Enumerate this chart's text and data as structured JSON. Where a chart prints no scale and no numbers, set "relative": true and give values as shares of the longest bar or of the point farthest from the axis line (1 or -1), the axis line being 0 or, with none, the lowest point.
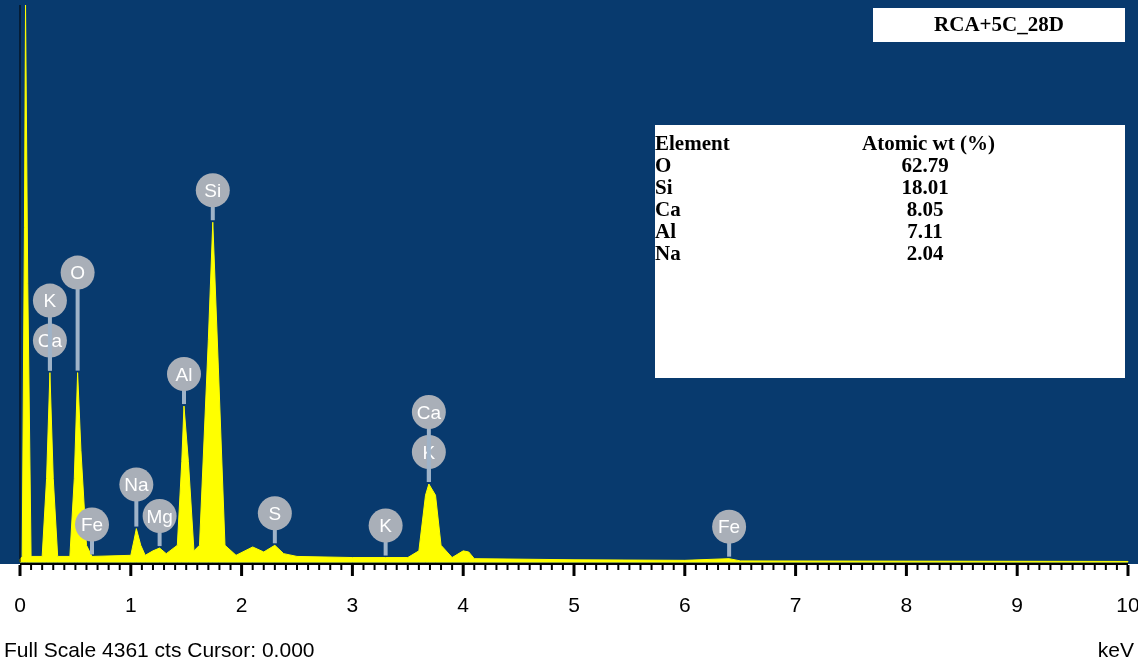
{
  "chart_data": {
    "type": "area",
    "title": "RCA+5C_28D",
    "xlabel": "keV",
    "relative": true,
    "color": "#ffff00",
    "xlim": [
      0,
      10
    ],
    "xticks": [
      0,
      {
        "value": 0.1,
        "label": null
      },
      {
        "value": 0.2,
        "label": null
      },
      {
        "value": 0.3,
        "label": null
      },
      {
        "value": 0.4,
        "label": null
      },
      {
        "value": 0.5,
        "label": null
      },
      {
        "value": 0.6,
        "label": null
      },
      {
        "value": 0.7,
        "label": null
      },
      {
        "value": 0.8,
        "label": null
      },
      {
        "value": 0.9,
        "label": null
      },
      1,
      {
        "value": 1.1,
        "label": null
      },
      {
        "value": 1.2,
        "label": null
      },
      {
        "value": 1.3,
        "label": null
      },
      {
        "value": 1.4,
        "label": null
      },
      {
        "value": 1.5,
        "label": null
      },
      {
        "value": 1.6,
        "label": null
      },
      {
        "value": 1.7,
        "label": null
      },
      {
        "value": 1.8,
        "label": null
      },
      {
        "value": 1.9,
        "label": null
      },
      2,
      {
        "value": 2.1,
        "label": null
      },
      {
        "value": 2.2,
        "label": null
      },
      {
        "value": 2.3,
        "label": null
      },
      {
        "value": 2.4,
        "label": null
      },
      {
        "value": 2.5,
        "label": null
      },
      {
        "value": 2.6,
        "label": null
      },
      {
        "value": 2.7,
        "label": null
      },
      {
        "value": 2.8,
        "label": null
      },
      {
        "value": 2.9,
        "label": null
      },
      3,
      {
        "value": 3.1,
        "label": null
      },
      {
        "value": 3.2,
        "label": null
      },
      {
        "value": 3.3,
        "label": null
      },
      {
        "value": 3.4,
        "label": null
      },
      {
        "value": 3.5,
        "label": null
      },
      {
        "value": 3.6,
        "label": null
      },
      {
        "value": 3.7,
        "label": null
      },
      {
        "value": 3.8,
        "label": null
      },
      {
        "value": 3.9,
        "label": null
      },
      4,
      {
        "value": 4.1,
        "label": null
      },
      {
        "value": 4.2,
        "label": null
      },
      {
        "value": 4.3,
        "label": null
      },
      {
        "value": 4.4,
        "label": null
      },
      {
        "value": 4.5,
        "label": null
      },
      {
        "value": 4.6,
        "label": null
      },
      {
        "value": 4.7,
        "label": null
      },
      {
        "value": 4.8,
        "label": null
      },
      {
        "value": 4.9,
        "label": null
      },
      5,
      {
        "value": 5.1,
        "label": null
      },
      {
        "value": 5.2,
        "label": null
      },
      {
        "value": 5.3,
        "label": null
      },
      {
        "value": 5.4,
        "label": null
      },
      {
        "value": 5.5,
        "label": null
      },
      {
        "value": 5.6,
        "label": null
      },
      {
        "value": 5.7,
        "label": null
      },
      {
        "value": 5.8,
        "label": null
      },
      {
        "value": 5.9,
        "label": null
      },
      6,
      {
        "value": 6.1,
        "label": null
      },
      {
        "value": 6.2,
        "label": null
      },
      {
        "value": 6.3,
        "label": null
      },
      {
        "value": 6.4,
        "label": null
      },
      {
        "value": 6.5,
        "label": null
      },
      {
        "value": 6.6,
        "label": null
      },
      {
        "value": 6.7,
        "label": null
      },
      {
        "value": 6.8,
        "label": null
      },
      {
        "value": 6.9,
        "label": null
      },
      7,
      {
        "value": 7.1,
        "label": null
      },
      {
        "value": 7.2,
        "label": null
      },
      {
        "value": 7.3,
        "label": null
      },
      {
        "value": 7.4,
        "label": null
      },
      {
        "value": 7.5,
        "label": null
      },
      {
        "value": 7.6,
        "label": null
      },
      {
        "value": 7.7,
        "label": null
      },
      {
        "value": 7.8,
        "label": null
      },
      {
        "value": 7.9,
        "label": null
      },
      8,
      {
        "value": 8.1,
        "label": null
      },
      {
        "value": 8.2,
        "label": null
      },
      {
        "value": 8.3,
        "label": null
      },
      {
        "value": 8.4,
        "label": null
      },
      {
        "value": 8.5,
        "label": null
      },
      {
        "value": 8.6,
        "label": null
      },
      {
        "value": 8.7,
        "label": null
      },
      {
        "value": 8.8,
        "label": null
      },
      {
        "value": 8.9,
        "label": null
      },
      9,
      {
        "value": 9.1,
        "label": null
      },
      {
        "value": 9.2,
        "label": null
      },
      {
        "value": 9.3,
        "label": null
      },
      {
        "value": 9.4,
        "label": null
      },
      {
        "value": 9.5,
        "label": null
      },
      {
        "value": 9.6,
        "label": null
      },
      {
        "value": 9.7,
        "label": null
      },
      {
        "value": 9.8,
        "label": null
      },
      {
        "value": 9.9,
        "label": null
      },
      10
    ],
    "x": [
      0,
      0.02,
      0.04,
      0.05,
      0.07,
      0.1,
      0.2,
      0.24,
      0.27,
      0.3,
      0.34,
      0.45,
      0.49,
      0.52,
      0.55,
      0.6,
      0.65,
      1.0,
      1.03,
      1.05,
      1.09,
      1.13,
      1.2,
      1.26,
      1.32,
      1.42,
      1.46,
      1.48,
      1.52,
      1.57,
      1.62,
      1.7,
      1.74,
      1.79,
      1.85,
      1.95,
      2.1,
      2.2,
      2.3,
      2.38,
      2.5,
      3.0,
      3.3,
      3.5,
      3.6,
      3.66,
      3.69,
      3.75,
      3.8,
      3.9,
      4.0,
      4.05,
      4.1,
      5,
      6,
      6.4,
      6.5,
      10
    ],
    "values": [
      0.005,
      0.01,
      0.6,
      1.0,
      0.5,
      0.01,
      0.01,
      0.15,
      0.34,
      0.15,
      0.01,
      0.01,
      0.15,
      0.34,
      0.2,
      0.03,
      0.01,
      0.012,
      0.04,
      0.06,
      0.03,
      0.012,
      0.02,
      0.025,
      0.015,
      0.03,
      0.18,
      0.28,
      0.18,
      0.02,
      0.03,
      0.4,
      0.61,
      0.35,
      0.03,
      0.012,
      0.027,
      0.018,
      0.03,
      0.015,
      0.01,
      0.008,
      0.008,
      0.008,
      0.02,
      0.12,
      0.14,
      0.12,
      0.03,
      0.008,
      0.02,
      0.018,
      0.006,
      0.004,
      0.003,
      0.006,
      0.002,
      0.001
    ],
    "annotations": [
      {
        "text": "Ca",
        "x": 0.27,
        "y": 0.34
      },
      {
        "text": "K",
        "x": 0.27,
        "y": 0.34
      },
      {
        "text": "O",
        "x": 0.52,
        "y": 0.34
      },
      {
        "text": "Fe",
        "x": 0.65,
        "y": 0.01
      },
      {
        "text": "Si",
        "x": 1.74,
        "y": 0.61
      },
      {
        "text": "Al",
        "x": 1.48,
        "y": 0.28
      },
      {
        "text": "Mg",
        "x": 1.26,
        "y": 0.025
      },
      {
        "text": "Na",
        "x": 1.05,
        "y": 0.06
      },
      {
        "text": "S",
        "x": 2.3,
        "y": 0.03
      },
      {
        "text": "K",
        "x": 3.3,
        "y": 0.008
      },
      {
        "text": "K",
        "x": 3.69,
        "y": 0.14
      },
      {
        "text": "Ca",
        "x": 3.69,
        "y": 0.14
      },
      {
        "text": "Fe",
        "x": 6.4,
        "y": 0.006
      },
      "Full Scale 4361 cts Cursor: 0.000",
      "Element",
      "Atomic wt (%)",
      "O",
      "62.79",
      "Si",
      "18.01",
      "Ca",
      "8.05",
      "Al",
      "7.11",
      "Na",
      "2.04"
    ]
  }
}
